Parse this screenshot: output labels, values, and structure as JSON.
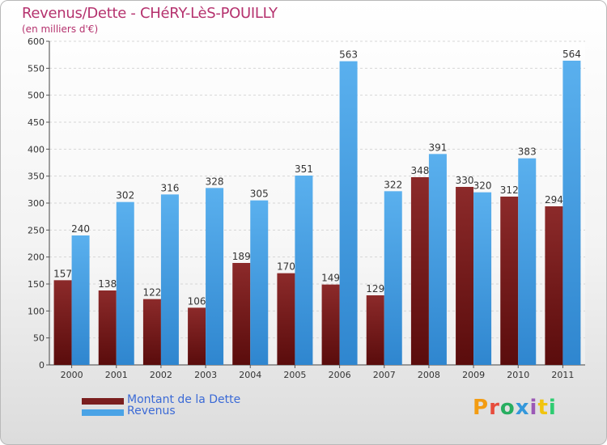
{
  "chart_data": {
    "type": "bar",
    "title": "Revenus/Dette - CHéRY-LèS-POUILLY",
    "subtitle": "(en milliers d'€)",
    "categories": [
      "2000",
      "2001",
      "2002",
      "2003",
      "2004",
      "2005",
      "2006",
      "2007",
      "2008",
      "2009",
      "2010",
      "2011"
    ],
    "series": [
      {
        "name": "Montant de la Dette",
        "color": "#7a1e1e",
        "values": [
          157,
          138,
          122,
          106,
          189,
          170,
          149,
          129,
          348,
          330,
          312,
          294
        ]
      },
      {
        "name": "Revenus",
        "color": "#4aa3e6",
        "values": [
          240,
          302,
          316,
          328,
          305,
          351,
          563,
          322,
          391,
          320,
          383,
          564
        ]
      }
    ],
    "ylim": [
      0,
      600
    ],
    "yticks": [
      0,
      50,
      100,
      150,
      200,
      250,
      300,
      350,
      400,
      450,
      500,
      550,
      600
    ],
    "grid": true,
    "legend_position": "bottom-left"
  },
  "logo": {
    "text": "Proxiti",
    "colors": [
      "#f39c12",
      "#e74c3c",
      "#27ae60",
      "#3498db",
      "#9b59b6",
      "#f1c40f",
      "#2ecc71"
    ]
  }
}
